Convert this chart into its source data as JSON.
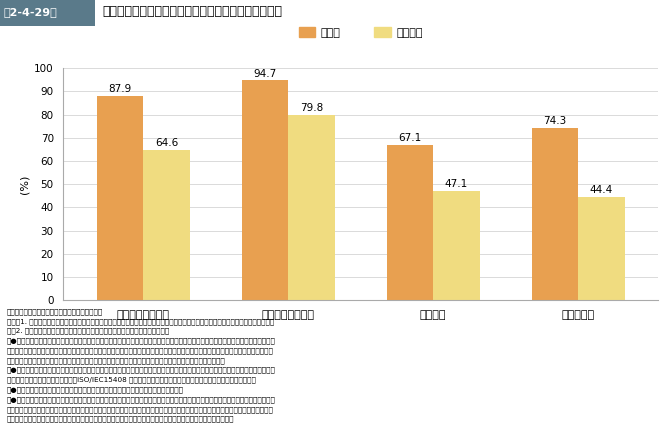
{
  "header_label": "第2-4-29図",
  "header_title": "　　企業規模別に見た情報セキュリティ対策実施状況",
  "categories": [
    "組織的対策の実施",
    "技術的対策の実施",
    "監視体制",
    "評価の実施"
  ],
  "series": [
    {
      "label": "大企業",
      "values": [
        87.9,
        94.7,
        67.1,
        74.3
      ],
      "color": "#E8A050"
    },
    {
      "label": "中小企業",
      "values": [
        64.6,
        79.8,
        47.1,
        44.4
      ],
      "color": "#F0DC80"
    }
  ],
  "ylabel": "(%)",
  "ylim": [
    0,
    100
  ],
  "yticks": [
    0,
    10,
    20,
    30,
    40,
    50,
    60,
    70,
    80,
    90,
    100
  ],
  "bar_width": 0.32,
  "header_bg_color": "#5a7a8a",
  "header_text_color": "#ffffff",
  "footnote_lines": [
    "資料：経済産業省「情報処理実態調査」再編加工",
    "（注）1. カテゴリー別の実施状況は、各カテゴリーに属するいずれかの対策を「既に実施している」と回答した企業を集計している。",
    "　　2. 情報セキュリティ対策のカテゴリーとして、以下の４つを提示している。",
    "　●組織的対策の実施：リスク分析、セキュリティポリシーの策定、セキュリティポリシーの策定に基づく具体的な対策、情報セキュリ",
    "　　ティ報告書の作成、事業継続計画の作成、全社的なセキュリティ管理者の配置、部門ごとのセキュリティ管理者の配置、従業員に対",
    "　　する情報セキュリティ教育、取引相手における情報セキュリティ対策実施状況の確認、内部統制の整備強化",
    "　●技術的対策の実施：重要なコンピュータ室への入退出管理、重要なシステムへの内部でのアクセス管理、データの暗号化、外部接続",
    "　　へのファイアウォールの配置、ISO/IEC15408 認証取得製品の導入、シンクライアントの導入、生体認証の導入",
    "　●監視体制：セキュリティ監視ソフトの導入、外部専門家による常時セキュリティ監視",
    "　●評価の実施：情報セキュリティ対策ベンチマークの活用、外部専門家による定期的なシステム監査、内部による定期的なシステム監",
    "　　査、外部専門家による定期的な情報セキュリティ監査、内部による定期的な情報セキュリティ監査、定期的な脆弱性診断の実施・定",
    "　　期的な脆弱性情報の取得・定期的なアクセスログの分析等、情報セキュリティマネジメントシステム認証の取得"
  ]
}
